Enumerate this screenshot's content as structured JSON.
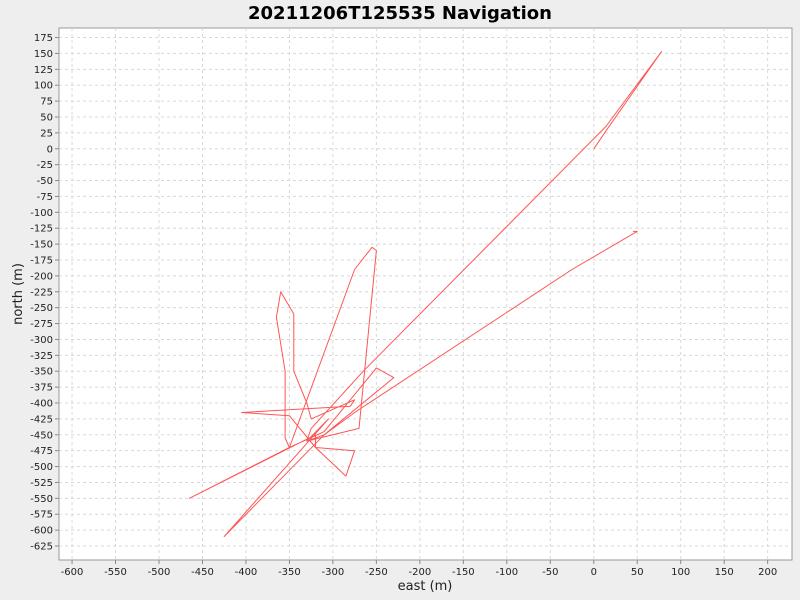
{
  "chart_data": {
    "type": "line",
    "title": "20211206T125535 Navigation",
    "xlabel": "east (m)",
    "ylabel": "north (m)",
    "xlim": [
      -615,
      228
    ],
    "ylim": [
      -647,
      190
    ],
    "grid": true,
    "x_ticks": [
      -600,
      -550,
      -500,
      -450,
      -400,
      -350,
      -300,
      -250,
      -200,
      -150,
      -100,
      -50,
      0,
      50,
      100,
      150,
      200
    ],
    "y_ticks": [
      175,
      150,
      125,
      100,
      75,
      50,
      25,
      0,
      -25,
      -50,
      -75,
      -100,
      -125,
      -150,
      -175,
      -200,
      -225,
      -250,
      -275,
      -300,
      -325,
      -350,
      -375,
      -400,
      -425,
      -450,
      -475,
      -500,
      -525,
      -550,
      -575,
      -600,
      -625
    ],
    "colors": {
      "track": "#ff5555",
      "plot_background": "#ffffff",
      "page_background": "#eeeeee"
    },
    "series": [
      {
        "name": "",
        "points": [
          [
            0,
            0
          ],
          [
            15,
            30
          ],
          [
            78,
            153
          ],
          [
            14,
            35
          ],
          [
            -265,
            -350
          ],
          [
            -325,
            -440
          ],
          [
            -330,
            -460
          ],
          [
            -270,
            -440
          ],
          [
            -250,
            -160
          ],
          [
            -255,
            -155
          ],
          [
            -275,
            -190
          ],
          [
            -350,
            -470
          ],
          [
            -355,
            -455
          ],
          [
            -355,
            -350
          ],
          [
            -365,
            -265
          ],
          [
            -360,
            -225
          ],
          [
            -345,
            -260
          ],
          [
            -345,
            -350
          ],
          [
            -330,
            -400
          ],
          [
            -325,
            -425
          ],
          [
            -275,
            -395
          ],
          [
            -280,
            -405
          ],
          [
            -405,
            -415
          ],
          [
            -350,
            -420
          ],
          [
            -320,
            -470
          ],
          [
            -275,
            -475
          ],
          [
            -285,
            -515
          ],
          [
            -320,
            -470
          ],
          [
            -320,
            -450
          ],
          [
            -465,
            -550
          ],
          [
            -350,
            -470
          ],
          [
            -310,
            -445
          ],
          [
            -250,
            -345
          ],
          [
            -230,
            -360
          ],
          [
            -310,
            -450
          ],
          [
            -330,
            -460
          ],
          [
            -305,
            -425
          ],
          [
            -425,
            -610
          ],
          [
            -310,
            -450
          ],
          [
            -275,
            -415
          ],
          [
            -25,
            -190
          ],
          [
            50,
            -130
          ],
          [
            45,
            -130
          ]
        ]
      }
    ]
  }
}
